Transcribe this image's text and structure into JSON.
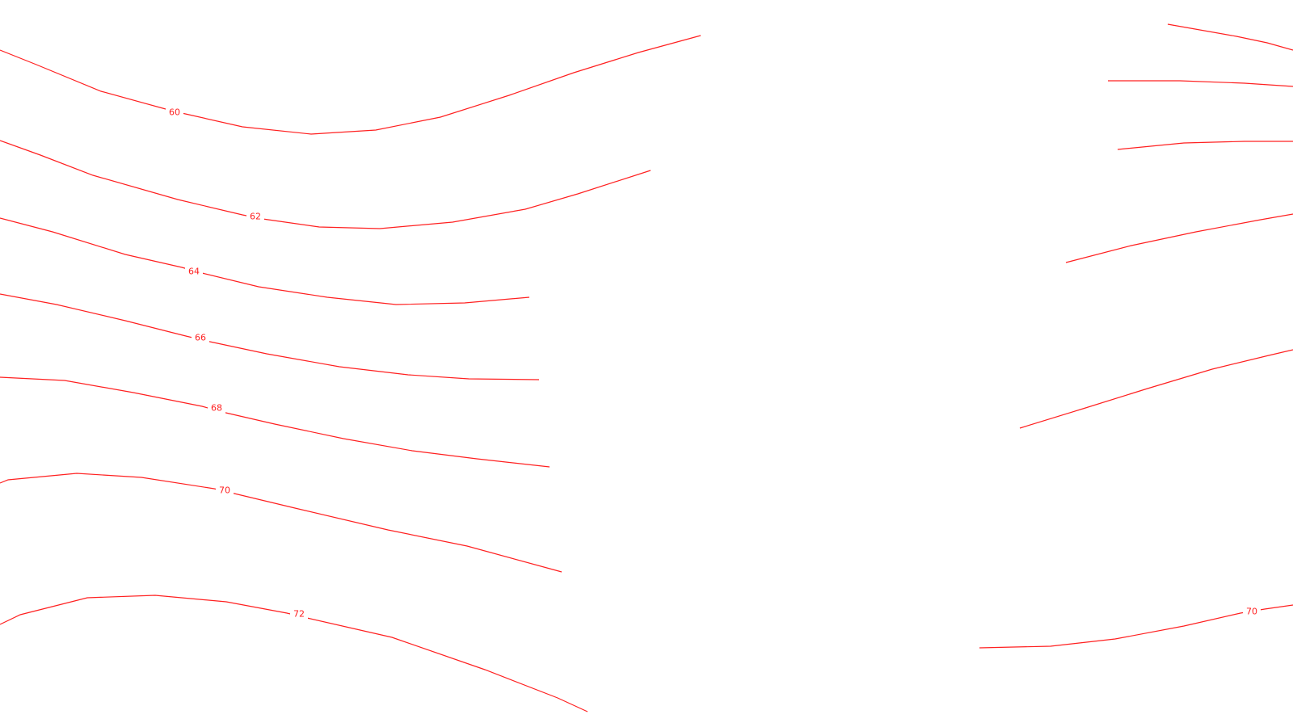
{
  "map": {
    "line_color": "#ff2020",
    "background": "#ffffff",
    "contour_labels": [
      {
        "id": "c60",
        "text": "60"
      },
      {
        "id": "c62",
        "text": "62"
      },
      {
        "id": "c64",
        "text": "64"
      },
      {
        "id": "c66",
        "text": "66"
      },
      {
        "id": "c68",
        "text": "68"
      },
      {
        "id": "c70",
        "text": "70"
      },
      {
        "id": "c72",
        "text": "72"
      },
      {
        "id": "c70b",
        "text": "70"
      }
    ]
  }
}
